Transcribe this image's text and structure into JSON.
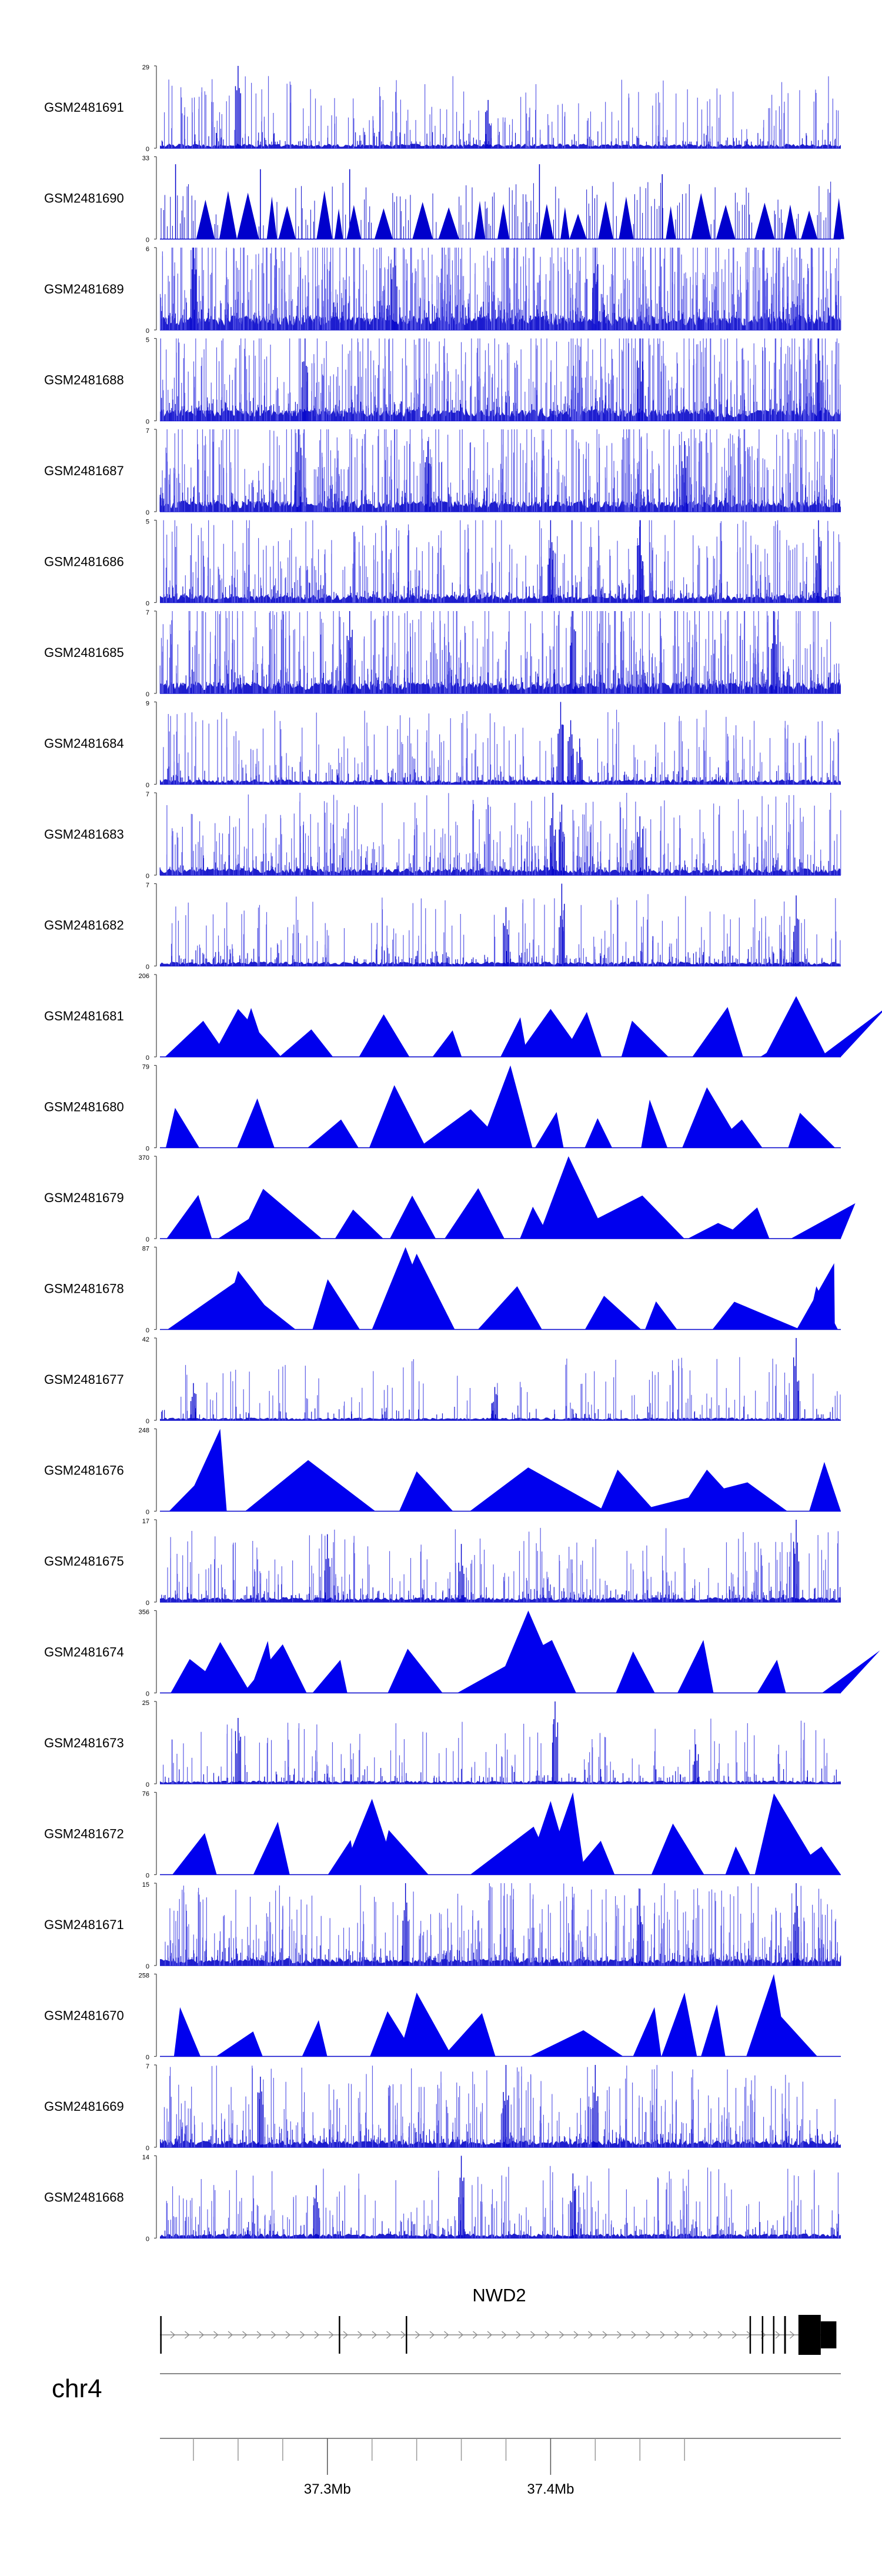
{
  "chart_data": {
    "type": "area",
    "title": "",
    "xlabel": "",
    "ylabel": "",
    "xlim": [
      37.225,
      37.53
    ],
    "chromosome": "chr4",
    "gene": {
      "name": "NWD2",
      "start": 37.225,
      "end": 37.528,
      "strand": "+",
      "exons": [
        [
          37.2251,
          37.2254
        ],
        [
          37.3051,
          37.3054
        ],
        [
          37.3351,
          37.3354
        ],
        [
          37.4891,
          37.4894
        ],
        [
          37.4946,
          37.4948
        ],
        [
          37.4996,
          37.4998
        ],
        [
          37.5046,
          37.5054
        ],
        [
          37.511,
          37.521
        ],
        [
          37.521,
          37.528
        ]
      ]
    },
    "axis": {
      "tick_positions": [
        37.24,
        37.26,
        37.28,
        37.3,
        37.32,
        37.34,
        37.36,
        37.38,
        37.4,
        37.42,
        37.44,
        37.46
      ],
      "labels": [
        {
          "pos": 37.3,
          "text": "37.3Mb"
        },
        {
          "pos": 37.4,
          "text": "37.4Mb"
        }
      ]
    },
    "series": [
      {
        "name": "GSM2481691",
        "ymin": "0",
        "ymax": "29",
        "style": "dense",
        "density": 1.0,
        "peaks": [
          [
            37.26,
            29
          ],
          [
            37.372,
            17
          ]
        ]
      },
      {
        "name": "GSM2481690",
        "ymin": "0",
        "ymax": "33",
        "style": "sparse",
        "density": 1.0,
        "peaks": [
          [
            37.232,
            30
          ],
          [
            37.27,
            28
          ],
          [
            37.31,
            28
          ],
          [
            37.395,
            30
          ],
          [
            37.45,
            26
          ]
        ]
      },
      {
        "name": "GSM2481689",
        "ymin": "0",
        "ymax": "6",
        "style": "dense",
        "density": 3.2,
        "peaks": [
          [
            37.24,
            6
          ],
          [
            37.33,
            6
          ],
          [
            37.42,
            6
          ]
        ]
      },
      {
        "name": "GSM2481688",
        "ymin": "0",
        "ymax": "5",
        "style": "dense",
        "density": 2.6,
        "peaks": [
          [
            37.29,
            5
          ],
          [
            37.44,
            5
          ],
          [
            37.52,
            5
          ]
        ]
      },
      {
        "name": "GSM2481687",
        "ymin": "0",
        "ymax": "7",
        "style": "dense",
        "density": 2.4,
        "peaks": [
          [
            37.287,
            7
          ],
          [
            37.345,
            6
          ],
          [
            37.46,
            6
          ]
        ]
      },
      {
        "name": "GSM2481686",
        "ymin": "0",
        "ymax": "5",
        "style": "dense",
        "density": 1.7,
        "peaks": [
          [
            37.4,
            5
          ],
          [
            37.44,
            5
          ],
          [
            37.52,
            5
          ]
        ]
      },
      {
        "name": "GSM2481685",
        "ymin": "0",
        "ymax": "7",
        "style": "dense",
        "density": 2.4,
        "peaks": [
          [
            37.31,
            7
          ],
          [
            37.41,
            7
          ],
          [
            37.5,
            7
          ]
        ]
      },
      {
        "name": "GSM2481684",
        "ymin": "0",
        "ymax": "9",
        "style": "dense",
        "density": 1.1,
        "peaks": [
          [
            37.4045,
            9
          ],
          [
            37.409,
            7
          ],
          [
            37.413,
            5
          ]
        ]
      },
      {
        "name": "GSM2481683",
        "ymin": "0",
        "ymax": "7",
        "style": "dense",
        "density": 1.5,
        "peaks": [
          [
            37.401,
            7
          ],
          [
            37.405,
            6
          ],
          [
            37.44,
            5
          ]
        ]
      },
      {
        "name": "GSM2481682",
        "ymin": "0",
        "ymax": "7",
        "style": "dense",
        "density": 1.0,
        "peaks": [
          [
            37.405,
            7
          ],
          [
            37.51,
            6
          ],
          [
            37.38,
            5
          ]
        ]
      },
      {
        "name": "GSM2481681",
        "ymin": "0",
        "ymax": "206",
        "style": "tri",
        "peaks": [
          [
            37.26,
            120
          ],
          [
            37.51,
            152
          ],
          [
            37.4,
            120
          ]
        ]
      },
      {
        "name": "GSM2481680",
        "ymin": "0",
        "ymax": "79",
        "style": "tri",
        "peaks": [
          [
            37.382,
            79
          ],
          [
            37.33,
            60
          ],
          [
            37.47,
            58
          ]
        ]
      },
      {
        "name": "GSM2481679",
        "ymin": "0",
        "ymax": "370",
        "style": "tri",
        "peaks": [
          [
            37.408,
            370
          ],
          [
            37.265,
            90
          ],
          [
            37.475,
            70
          ]
        ]
      },
      {
        "name": "GSM2481678",
        "ymin": "0",
        "ymax": "87",
        "style": "tri",
        "peaks": [
          [
            37.335,
            87
          ],
          [
            37.34,
            80
          ],
          [
            37.26,
            62
          ],
          [
            37.527,
            70
          ]
        ]
      },
      {
        "name": "GSM2481677",
        "ymin": "0",
        "ymax": "42",
        "style": "dense",
        "density": 0.6,
        "peaks": [
          [
            37.24,
            19
          ],
          [
            37.51,
            42
          ],
          [
            37.375,
            17
          ]
        ]
      },
      {
        "name": "GSM2481676",
        "ymin": "0",
        "ymax": "248",
        "style": "tri",
        "peaks": [
          [
            37.252,
            248
          ],
          [
            37.34,
            120
          ],
          [
            37.43,
            125
          ],
          [
            37.47,
            125
          ]
        ]
      },
      {
        "name": "GSM2481675",
        "ymin": "0",
        "ymax": "17",
        "style": "dense",
        "density": 1.1,
        "peaks": [
          [
            37.51,
            17
          ],
          [
            37.3,
            14
          ],
          [
            37.36,
            12
          ]
        ]
      },
      {
        "name": "GSM2481674",
        "ymin": "0",
        "ymax": "356",
        "style": "tri",
        "peaks": [
          [
            37.39,
            356
          ],
          [
            37.28,
            210
          ],
          [
            37.252,
            220
          ]
        ]
      },
      {
        "name": "GSM2481673",
        "ymin": "0",
        "ymax": "25",
        "style": "dense",
        "density": 0.7,
        "peaks": [
          [
            37.26,
            20
          ],
          [
            37.402,
            25
          ],
          [
            37.465,
            12
          ]
        ]
      },
      {
        "name": "GSM2481672",
        "ymin": "0",
        "ymax": "76",
        "style": "tri",
        "peaks": [
          [
            37.32,
            70
          ],
          [
            37.41,
            76
          ],
          [
            37.4,
            68
          ],
          [
            37.5,
            75
          ]
        ]
      },
      {
        "name": "GSM2481671",
        "ymin": "0",
        "ymax": "15",
        "style": "dense",
        "density": 1.6,
        "peaks": [
          [
            37.335,
            15
          ],
          [
            37.44,
            14
          ],
          [
            37.51,
            15
          ]
        ]
      },
      {
        "name": "GSM2481670",
        "ymin": "0",
        "ymax": "258",
        "style": "tri",
        "peaks": [
          [
            37.5,
            258
          ],
          [
            37.34,
            200
          ],
          [
            37.46,
            200
          ]
        ]
      },
      {
        "name": "GSM2481669",
        "ymin": "0",
        "ymax": "7",
        "style": "dense",
        "density": 1.5,
        "peaks": [
          [
            37.38,
            7
          ],
          [
            37.42,
            7
          ],
          [
            37.27,
            6
          ]
        ]
      },
      {
        "name": "GSM2481668",
        "ymin": "0",
        "ymax": "14",
        "style": "dense",
        "density": 1.0,
        "peaks": [
          [
            37.36,
            14
          ],
          [
            37.41,
            11
          ],
          [
            37.295,
            9
          ]
        ]
      }
    ]
  }
}
